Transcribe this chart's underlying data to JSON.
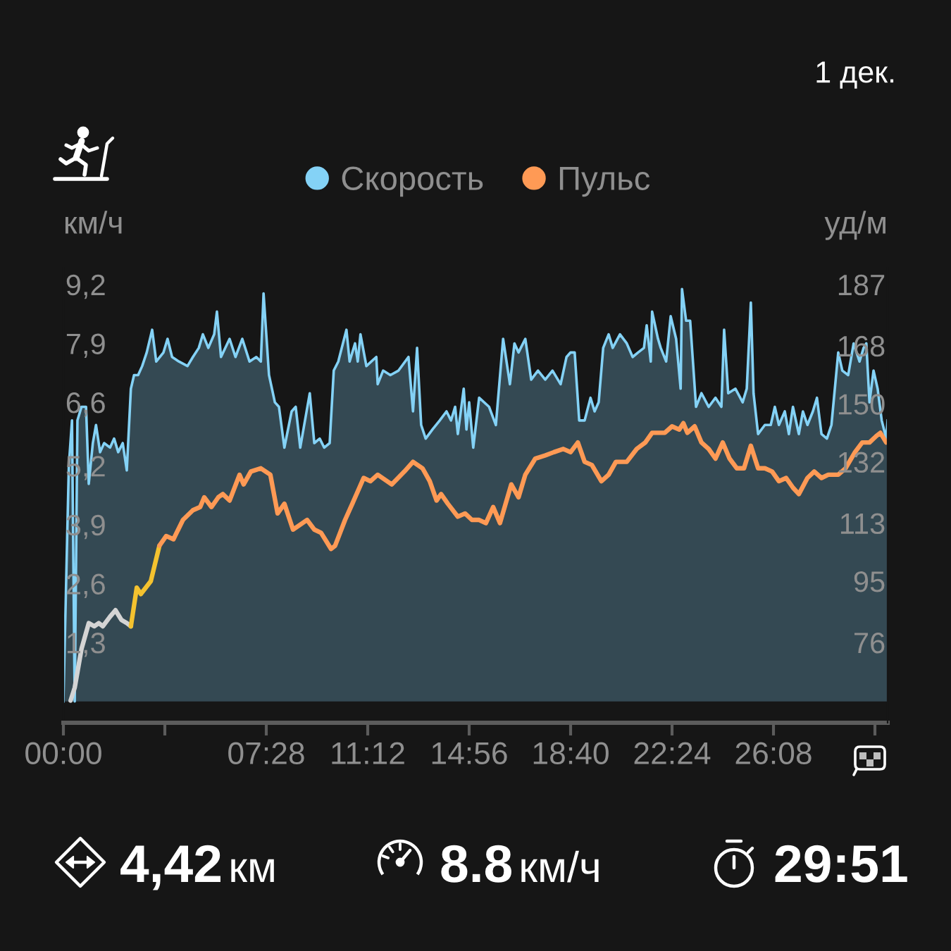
{
  "chart_data": {
    "type": "line",
    "subtitle": "1 дек.",
    "ylabel": "км/ч",
    "y2label": "уд/м",
    "legend": "top",
    "annotations": [
      "4,42 км",
      "8.8 км/ч",
      "29:51"
    ],
    "xlim": [
      0,
      1820
    ],
    "xticks": [
      {
        "value": 0,
        "label": "00:00"
      },
      {
        "value": 224,
        "label": null
      },
      {
        "value": 448,
        "label": "07:28"
      },
      {
        "value": 672,
        "label": "11:12"
      },
      {
        "value": 896,
        "label": "14:56"
      },
      {
        "value": 1120,
        "label": "18:40"
      },
      {
        "value": 1344,
        "label": "22:24"
      },
      {
        "value": 1568,
        "label": "26:08"
      },
      {
        "value": 1792,
        "label": null
      }
    ],
    "ylim": [
      -0.47,
      9.57
    ],
    "yticks": [
      {
        "value": 1.3,
        "label": "1,3"
      },
      {
        "value": 2.6,
        "label": "2,6"
      },
      {
        "value": 3.9,
        "label": "3,9"
      },
      {
        "value": 5.2,
        "label": "5,2"
      },
      {
        "value": 6.6,
        "label": "6,6"
      },
      {
        "value": 7.9,
        "label": "7,9"
      },
      {
        "value": 9.2,
        "label": "9,2"
      }
    ],
    "y2lim": [
      51.1,
      192.2
    ],
    "y2ticks": [
      76,
      95,
      113,
      132,
      150,
      168,
      187
    ],
    "series": [
      {
        "name": "Скорость",
        "type": "area",
        "color": "#84d2f6",
        "x": [
          0,
          12,
          19,
          25,
          31,
          40,
          50,
          56,
          65,
          72,
          81,
          90,
          103,
          112,
          121,
          131,
          140,
          149,
          156,
          165,
          174,
          184,
          196,
          205,
          221,
          230,
          240,
          255,
          274,
          286,
          299,
          308,
          320,
          333,
          339,
          348,
          367,
          380,
          395,
          411,
          426,
          436,
          442,
          454,
          467,
          476,
          488,
          504,
          513,
          523,
          544,
          554,
          566,
          576,
          588,
          597,
          607,
          625,
          632,
          644,
          650,
          656,
          669,
          691,
          694,
          706,
          722,
          740,
          762,
          772,
          781,
          790,
          800,
          815,
          831,
          846,
          856,
          865,
          871,
          884,
          890,
          896,
          905,
          918,
          940,
          955,
          971,
          986,
          996,
          1005,
          1020,
          1033,
          1048,
          1064,
          1080,
          1098,
          1111,
          1120,
          1129,
          1139,
          1151,
          1164,
          1173,
          1182,
          1192,
          1204,
          1213,
          1229,
          1244,
          1257,
          1269,
          1282,
          1288,
          1297,
          1300,
          1313,
          1319,
          1331,
          1341,
          1353,
          1363,
          1366,
          1375,
          1384,
          1397,
          1409,
          1425,
          1440,
          1453,
          1459,
          1468,
          1484,
          1500,
          1509,
          1518,
          1524,
          1534,
          1549,
          1562,
          1571,
          1580,
          1593,
          1602,
          1611,
          1624,
          1633,
          1643,
          1655,
          1664,
          1674,
          1686,
          1696,
          1711,
          1720,
          1733,
          1745,
          1758,
          1767,
          1773,
          1780,
          1789,
          1798,
          1807,
          1817,
          1820
        ],
        "values": [
          0.0,
          5.2,
          6.2,
          0.0,
          6.2,
          6.5,
          6.5,
          4.8,
          5.7,
          6.1,
          5.5,
          5.7,
          5.6,
          5.8,
          5.5,
          5.7,
          5.1,
          6.9,
          7.2,
          7.2,
          7.4,
          7.7,
          8.2,
          7.5,
          7.7,
          8.0,
          7.6,
          7.5,
          7.4,
          7.6,
          7.8,
          8.1,
          7.8,
          8.1,
          8.6,
          7.6,
          8.0,
          7.6,
          8.0,
          7.5,
          7.6,
          7.5,
          9.0,
          7.2,
          6.6,
          6.5,
          5.6,
          6.4,
          6.5,
          5.6,
          6.8,
          5.7,
          5.8,
          5.6,
          5.7,
          7.3,
          7.5,
          8.2,
          7.5,
          7.9,
          7.5,
          8.1,
          7.4,
          7.6,
          7.0,
          7.3,
          7.2,
          7.3,
          7.6,
          6.4,
          7.8,
          6.1,
          5.8,
          6.0,
          6.2,
          6.4,
          6.2,
          6.5,
          5.9,
          6.9,
          6.0,
          6.6,
          5.6,
          6.7,
          6.5,
          6.1,
          8.0,
          7.0,
          7.9,
          7.7,
          8.0,
          7.1,
          7.3,
          7.1,
          7.3,
          7.0,
          7.6,
          7.7,
          7.7,
          6.2,
          6.2,
          6.7,
          6.4,
          6.6,
          7.8,
          8.1,
          7.8,
          8.1,
          7.9,
          7.6,
          7.7,
          7.8,
          8.3,
          7.5,
          8.6,
          8.0,
          7.8,
          7.5,
          8.5,
          8.0,
          6.9,
          9.1,
          8.4,
          8.4,
          6.5,
          6.8,
          6.5,
          6.7,
          6.5,
          8.2,
          6.8,
          6.9,
          6.6,
          6.9,
          8.8,
          6.8,
          5.9,
          6.1,
          6.1,
          6.5,
          6.1,
          6.4,
          5.9,
          6.5,
          5.9,
          6.4,
          6.1,
          6.4,
          6.7,
          5.9,
          5.8,
          6.1,
          7.7,
          7.3,
          7.2,
          7.9,
          7.5,
          7.8,
          7.9,
          6.6,
          7.3,
          6.9,
          6.2,
          5.8,
          6.2
        ]
      },
      {
        "axis": "y2",
        "color": "#d4d4d4",
        "x": [
          16,
          25,
          40,
          56,
          68,
          78,
          87,
          103,
          115,
          128,
          140,
          149
        ],
        "values": [
          58,
          62,
          74,
          82,
          81,
          82,
          81,
          84,
          86,
          83,
          82,
          81
        ]
      },
      {
        "axis": "y2",
        "color": "#f4c22f",
        "x": [
          149,
          162,
          171,
          193,
          212
        ],
        "values": [
          81,
          93,
          91,
          95,
          106
        ]
      },
      {
        "name": "Пульс",
        "axis": "y2",
        "color": "#ff9a55",
        "x": [
          212,
          227,
          243,
          264,
          286,
          302,
          311,
          327,
          342,
          352,
          367,
          389,
          398,
          414,
          436,
          457,
          473,
          488,
          507,
          538,
          554,
          569,
          591,
          600,
          622,
          638,
          663,
          678,
          694,
          725,
          753,
          772,
          793,
          809,
          824,
          834,
          849,
          871,
          887,
          902,
          918,
          933,
          949,
          964,
          989,
          1005,
          1020,
          1042,
          1064,
          1083,
          1104,
          1120,
          1136,
          1151,
          1167,
          1188,
          1204,
          1220,
          1244,
          1266,
          1285,
          1300,
          1328,
          1344,
          1360,
          1369,
          1378,
          1394,
          1409,
          1425,
          1440,
          1456,
          1471,
          1487,
          1503,
          1518,
          1534,
          1549,
          1565,
          1580,
          1596,
          1611,
          1624,
          1643,
          1658,
          1674,
          1689,
          1711,
          1727,
          1748,
          1764,
          1780,
          1795,
          1804,
          1817
        ],
        "values": [
          106,
          109,
          108,
          114,
          117,
          118,
          121,
          118,
          121,
          122,
          120,
          128,
          125,
          129,
          130,
          128,
          116,
          119,
          111,
          114,
          111,
          110,
          105,
          106,
          114,
          119,
          127,
          126,
          128,
          125,
          129,
          132,
          130,
          126,
          120,
          122,
          119,
          115,
          116,
          114,
          114,
          113,
          118,
          113,
          125,
          121,
          128,
          133,
          134,
          135,
          136,
          135,
          138,
          132,
          131,
          126,
          128,
          132,
          132,
          136,
          138,
          141,
          141,
          143,
          142,
          144,
          141,
          143,
          138,
          136,
          133,
          138,
          133,
          130,
          130,
          137,
          130,
          130,
          129,
          126,
          127,
          124,
          122,
          127,
          129,
          127,
          128,
          128,
          130,
          135,
          138,
          138,
          140,
          141,
          138
        ]
      }
    ]
  }
}
